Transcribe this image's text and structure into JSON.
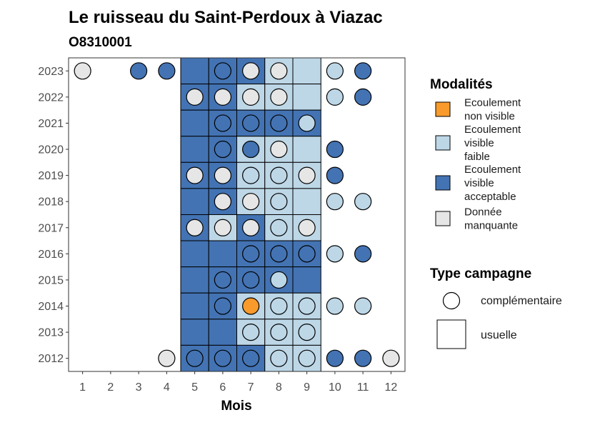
{
  "chart_data": {
    "type": "heatmap",
    "title": "Le ruisseau du Saint-Perdoux à Viazac",
    "subtitle": "O8310001",
    "xlabel": "Mois",
    "ylabel": "",
    "x_categories": [
      "1",
      "2",
      "3",
      "4",
      "5",
      "6",
      "7",
      "8",
      "9",
      "10",
      "11",
      "12"
    ],
    "y_categories": [
      "2012",
      "2013",
      "2014",
      "2015",
      "2016",
      "2017",
      "2018",
      "2019",
      "2020",
      "2021",
      "2022",
      "2023"
    ],
    "legend_modalites": {
      "title": "Modalités",
      "items": [
        {
          "key": "nv",
          "label_lines": [
            "Ecoulement",
            "non visible"
          ],
          "color": "#F89A2C"
        },
        {
          "key": "vf",
          "label_lines": [
            "Ecoulement",
            "visible",
            "faible"
          ],
          "color": "#BDD7E7"
        },
        {
          "key": "va",
          "label_lines": [
            "Ecoulement",
            "visible",
            "acceptable"
          ],
          "color": "#4373B3"
        },
        {
          "key": "dm",
          "label_lines": [
            "Donnée",
            "manquante"
          ],
          "color": "#E6E6E6"
        }
      ]
    },
    "legend_type": {
      "title": "Type campagne",
      "items": [
        {
          "key": "circle",
          "label": "complémentaire"
        },
        {
          "key": "square",
          "label": "usuelle"
        }
      ]
    },
    "usuelle": [
      {
        "year": "2023",
        "month": 5,
        "value": "va"
      },
      {
        "year": "2023",
        "month": 6,
        "value": "va"
      },
      {
        "year": "2023",
        "month": 7,
        "value": "va"
      },
      {
        "year": "2023",
        "month": 8,
        "value": "vf"
      },
      {
        "year": "2023",
        "month": 9,
        "value": "vf"
      },
      {
        "year": "2022",
        "month": 5,
        "value": "va"
      },
      {
        "year": "2022",
        "month": 6,
        "value": "va"
      },
      {
        "year": "2022",
        "month": 7,
        "value": "vf"
      },
      {
        "year": "2022",
        "month": 8,
        "value": "vf"
      },
      {
        "year": "2022",
        "month": 9,
        "value": "vf"
      },
      {
        "year": "2021",
        "month": 5,
        "value": "va"
      },
      {
        "year": "2021",
        "month": 6,
        "value": "va"
      },
      {
        "year": "2021",
        "month": 7,
        "value": "va"
      },
      {
        "year": "2021",
        "month": 8,
        "value": "va"
      },
      {
        "year": "2021",
        "month": 9,
        "value": "va"
      },
      {
        "year": "2020",
        "month": 5,
        "value": "va"
      },
      {
        "year": "2020",
        "month": 6,
        "value": "va"
      },
      {
        "year": "2020",
        "month": 7,
        "value": "vf"
      },
      {
        "year": "2020",
        "month": 8,
        "value": "vf"
      },
      {
        "year": "2020",
        "month": 9,
        "value": "vf"
      },
      {
        "year": "2019",
        "month": 5,
        "value": "va"
      },
      {
        "year": "2019",
        "month": 6,
        "value": "va"
      },
      {
        "year": "2019",
        "month": 7,
        "value": "vf"
      },
      {
        "year": "2019",
        "month": 8,
        "value": "vf"
      },
      {
        "year": "2019",
        "month": 9,
        "value": "vf"
      },
      {
        "year": "2018",
        "month": 5,
        "value": "va"
      },
      {
        "year": "2018",
        "month": 6,
        "value": "va"
      },
      {
        "year": "2018",
        "month": 7,
        "value": "vf"
      },
      {
        "year": "2018",
        "month": 8,
        "value": "vf"
      },
      {
        "year": "2018",
        "month": 9,
        "value": "vf"
      },
      {
        "year": "2017",
        "month": 5,
        "value": "va"
      },
      {
        "year": "2017",
        "month": 6,
        "value": "vf"
      },
      {
        "year": "2017",
        "month": 7,
        "value": "va"
      },
      {
        "year": "2017",
        "month": 8,
        "value": "vf"
      },
      {
        "year": "2017",
        "month": 9,
        "value": "vf"
      },
      {
        "year": "2016",
        "month": 5,
        "value": "va"
      },
      {
        "year": "2016",
        "month": 6,
        "value": "va"
      },
      {
        "year": "2016",
        "month": 7,
        "value": "va"
      },
      {
        "year": "2016",
        "month": 8,
        "value": "va"
      },
      {
        "year": "2016",
        "month": 9,
        "value": "va"
      },
      {
        "year": "2015",
        "month": 5,
        "value": "va"
      },
      {
        "year": "2015",
        "month": 6,
        "value": "va"
      },
      {
        "year": "2015",
        "month": 7,
        "value": "va"
      },
      {
        "year": "2015",
        "month": 8,
        "value": "va"
      },
      {
        "year": "2015",
        "month": 9,
        "value": "va"
      },
      {
        "year": "2014",
        "month": 5,
        "value": "va"
      },
      {
        "year": "2014",
        "month": 6,
        "value": "va"
      },
      {
        "year": "2014",
        "month": 7,
        "value": "vf"
      },
      {
        "year": "2014",
        "month": 8,
        "value": "vf"
      },
      {
        "year": "2014",
        "month": 9,
        "value": "vf"
      },
      {
        "year": "2013",
        "month": 5,
        "value": "va"
      },
      {
        "year": "2013",
        "month": 6,
        "value": "va"
      },
      {
        "year": "2013",
        "month": 7,
        "value": "vf"
      },
      {
        "year": "2013",
        "month": 8,
        "value": "vf"
      },
      {
        "year": "2013",
        "month": 9,
        "value": "vf"
      },
      {
        "year": "2012",
        "month": 5,
        "value": "va"
      },
      {
        "year": "2012",
        "month": 6,
        "value": "va"
      },
      {
        "year": "2012",
        "month": 7,
        "value": "va"
      },
      {
        "year": "2012",
        "month": 8,
        "value": "vf"
      },
      {
        "year": "2012",
        "month": 9,
        "value": "vf"
      }
    ],
    "complementaire": [
      {
        "year": "2023",
        "month": 1,
        "value": "dm"
      },
      {
        "year": "2023",
        "month": 3,
        "value": "va"
      },
      {
        "year": "2023",
        "month": 4,
        "value": "va"
      },
      {
        "year": "2023",
        "month": 6,
        "value": "va"
      },
      {
        "year": "2023",
        "month": 7,
        "value": "dm"
      },
      {
        "year": "2023",
        "month": 8,
        "value": "dm"
      },
      {
        "year": "2023",
        "month": 10,
        "value": "vf"
      },
      {
        "year": "2023",
        "month": 11,
        "value": "va"
      },
      {
        "year": "2022",
        "month": 5,
        "value": "dm"
      },
      {
        "year": "2022",
        "month": 6,
        "value": "dm"
      },
      {
        "year": "2022",
        "month": 7,
        "value": "dm"
      },
      {
        "year": "2022",
        "month": 8,
        "value": "dm"
      },
      {
        "year": "2022",
        "month": 10,
        "value": "vf"
      },
      {
        "year": "2022",
        "month": 11,
        "value": "va"
      },
      {
        "year": "2021",
        "month": 6,
        "value": "va"
      },
      {
        "year": "2021",
        "month": 7,
        "value": "va"
      },
      {
        "year": "2021",
        "month": 8,
        "value": "va"
      },
      {
        "year": "2021",
        "month": 9,
        "value": "vf"
      },
      {
        "year": "2020",
        "month": 6,
        "value": "va"
      },
      {
        "year": "2020",
        "month": 7,
        "value": "va"
      },
      {
        "year": "2020",
        "month": 8,
        "value": "dm"
      },
      {
        "year": "2020",
        "month": 10,
        "value": "va"
      },
      {
        "year": "2019",
        "month": 5,
        "value": "dm"
      },
      {
        "year": "2019",
        "month": 6,
        "value": "dm"
      },
      {
        "year": "2019",
        "month": 7,
        "value": "vf"
      },
      {
        "year": "2019",
        "month": 8,
        "value": "vf"
      },
      {
        "year": "2019",
        "month": 9,
        "value": "dm"
      },
      {
        "year": "2019",
        "month": 10,
        "value": "va"
      },
      {
        "year": "2018",
        "month": 6,
        "value": "dm"
      },
      {
        "year": "2018",
        "month": 7,
        "value": "dm"
      },
      {
        "year": "2018",
        "month": 8,
        "value": "vf"
      },
      {
        "year": "2018",
        "month": 10,
        "value": "vf"
      },
      {
        "year": "2018",
        "month": 11,
        "value": "vf"
      },
      {
        "year": "2017",
        "month": 5,
        "value": "dm"
      },
      {
        "year": "2017",
        "month": 6,
        "value": "dm"
      },
      {
        "year": "2017",
        "month": 7,
        "value": "dm"
      },
      {
        "year": "2017",
        "month": 8,
        "value": "vf"
      },
      {
        "year": "2017",
        "month": 9,
        "value": "dm"
      },
      {
        "year": "2016",
        "month": 7,
        "value": "va"
      },
      {
        "year": "2016",
        "month": 8,
        "value": "va"
      },
      {
        "year": "2016",
        "month": 9,
        "value": "va"
      },
      {
        "year": "2016",
        "month": 10,
        "value": "vf"
      },
      {
        "year": "2016",
        "month": 11,
        "value": "va"
      },
      {
        "year": "2015",
        "month": 6,
        "value": "va"
      },
      {
        "year": "2015",
        "month": 7,
        "value": "va"
      },
      {
        "year": "2015",
        "month": 8,
        "value": "vf"
      },
      {
        "year": "2014",
        "month": 6,
        "value": "va"
      },
      {
        "year": "2014",
        "month": 7,
        "value": "nv"
      },
      {
        "year": "2014",
        "month": 8,
        "value": "vf"
      },
      {
        "year": "2014",
        "month": 9,
        "value": "vf"
      },
      {
        "year": "2014",
        "month": 10,
        "value": "vf"
      },
      {
        "year": "2014",
        "month": 11,
        "value": "vf"
      },
      {
        "year": "2013",
        "month": 7,
        "value": "vf"
      },
      {
        "year": "2013",
        "month": 8,
        "value": "vf"
      },
      {
        "year": "2013",
        "month": 9,
        "value": "vf"
      },
      {
        "year": "2012",
        "month": 4,
        "value": "dm"
      },
      {
        "year": "2012",
        "month": 5,
        "value": "va"
      },
      {
        "year": "2012",
        "month": 6,
        "value": "va"
      },
      {
        "year": "2012",
        "month": 7,
        "value": "va"
      },
      {
        "year": "2012",
        "month": 8,
        "value": "vf"
      },
      {
        "year": "2012",
        "month": 9,
        "value": "vf"
      },
      {
        "year": "2012",
        "month": 10,
        "value": "va"
      },
      {
        "year": "2012",
        "month": 11,
        "value": "va"
      },
      {
        "year": "2012",
        "month": 12,
        "value": "dm"
      }
    ]
  }
}
